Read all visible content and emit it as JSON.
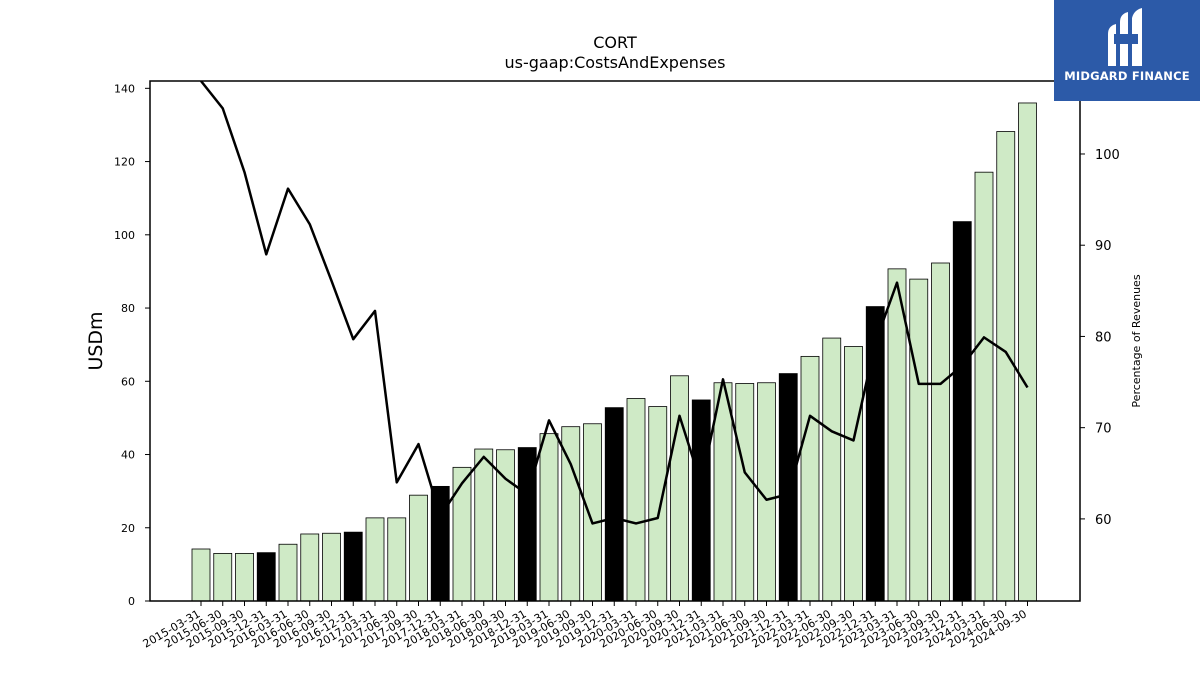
{
  "chart_data": {
    "type": "bar",
    "title": "CORT",
    "subtitle": "us-gaap:CostsAndExpenses",
    "ylabel": "USDm",
    "ylabel_right": "Percentage of Revenues",
    "ylim": [
      0,
      142
    ],
    "ylim_right": [
      51,
      108
    ],
    "yticks": [
      0,
      20,
      40,
      60,
      80,
      100,
      120,
      140
    ],
    "yticks_right": [
      60,
      70,
      80,
      90,
      100
    ],
    "grid": false,
    "categories": [
      "2015-03-31",
      "2015-06-30",
      "2015-09-30",
      "2015-12-31",
      "2016-03-31",
      "2016-06-30",
      "2016-09-30",
      "2016-12-31",
      "2017-03-31",
      "2017-06-30",
      "2017-09-30",
      "2017-12-31",
      "2018-03-31",
      "2018-06-30",
      "2018-09-30",
      "2018-12-31",
      "2019-03-31",
      "2019-06-30",
      "2019-09-30",
      "2019-12-31",
      "2020-03-31",
      "2020-06-30",
      "2020-09-30",
      "2020-12-31",
      "2021-03-31",
      "2021-06-30",
      "2021-09-30",
      "2021-12-31",
      "2022-03-31",
      "2022-06-30",
      "2022-09-30",
      "2022-12-31",
      "2023-03-31",
      "2023-06-30",
      "2023-09-30",
      "2023-12-31",
      "2024-03-31",
      "2024-06-30",
      "2024-09-30"
    ],
    "series": [
      {
        "type": "bar",
        "axis": "left",
        "values": [
          14.2,
          13.0,
          13.0,
          13.2,
          15.5,
          18.3,
          18.5,
          18.8,
          22.7,
          22.7,
          28.9,
          31.3,
          36.5,
          41.5,
          41.3,
          41.9,
          45.7,
          47.6,
          48.4,
          52.8,
          55.3,
          53.1,
          61.5,
          54.9,
          59.6,
          59.4,
          59.6,
          62.1,
          66.8,
          71.8,
          69.5,
          80.4,
          90.7,
          87.9,
          92.3,
          103.6,
          117.1,
          128.2,
          136.0
        ],
        "colors": {
          "quarter": "#cfeac6",
          "year_end": "#000000"
        }
      },
      {
        "type": "line",
        "axis": "right",
        "values": [
          108.0,
          105.0,
          98.0,
          89.0,
          96.2,
          92.3,
          86.1,
          79.7,
          82.8,
          64.0,
          68.2,
          60.3,
          63.9,
          66.8,
          64.4,
          62.7,
          70.8,
          66.0,
          59.5,
          60.1,
          59.5,
          60.1,
          71.3,
          63.8,
          75.3,
          65.1,
          62.1,
          62.7,
          71.3,
          69.6,
          68.6,
          79.3,
          85.9,
          74.8,
          74.8,
          76.8,
          79.9,
          78.3,
          74.4
        ],
        "color": "#000000"
      }
    ]
  },
  "logo": {
    "text": "MIDGARD FINANCE",
    "bg": "#2c5aa8"
  }
}
